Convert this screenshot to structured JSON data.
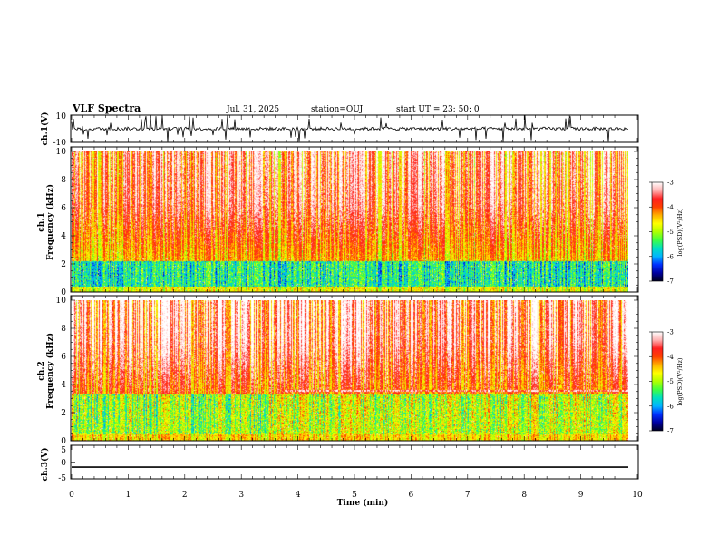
{
  "header": {
    "title": "VLF Spectra",
    "date": "Jul. 31, 2025",
    "station": "station=OUJ",
    "start": "start UT =  23: 50: 0"
  },
  "chart_data": [
    {
      "type": "line",
      "name": "ch1-waveform",
      "ylabel": "ch.1(V)",
      "ylim": [
        -10,
        10
      ],
      "yticklabels": [
        "10",
        "-10"
      ],
      "baseline": 0,
      "color": "#000000"
    },
    {
      "type": "heatmap",
      "name": "ch1-spectrogram",
      "ylabel_top": "ch.1",
      "ylabel": "Frequency (kHz)",
      "ylim": [
        0,
        10
      ],
      "yticks": [
        "0",
        "2",
        "4",
        "6",
        "8",
        "10"
      ],
      "colorbar": {
        "label": "log(PSD)(V²/Hz)",
        "range": [
          -7,
          -3
        ],
        "ticks": [
          "-3",
          "-4",
          "-5",
          "-6",
          "-7"
        ]
      }
    },
    {
      "type": "heatmap",
      "name": "ch2-spectrogram",
      "ylabel_top": "ch.2",
      "ylabel": "Frequency (kHz)",
      "ylim": [
        0,
        10
      ],
      "yticks": [
        "0",
        "2",
        "4",
        "6",
        "8",
        "10"
      ],
      "colorbar": {
        "label": "log(PSD)(V²/Hz)",
        "range": [
          -7,
          -3
        ],
        "ticks": [
          "-3",
          "-4",
          "-5",
          "-6",
          "-7"
        ]
      }
    },
    {
      "type": "line",
      "name": "ch3-waveform",
      "ylabel": "ch.3(V)",
      "ylim": [
        -5,
        5
      ],
      "yticklabels": [
        "5",
        "0",
        "-5"
      ],
      "baseline": -1.5,
      "color": "#000000"
    }
  ],
  "xaxis": {
    "label": "Time (min)",
    "range": [
      0,
      10
    ],
    "ticks": [
      "0",
      "1",
      "2",
      "3",
      "4",
      "5",
      "6",
      "7",
      "8",
      "9",
      "10"
    ]
  },
  "colormap": [
    "#000020",
    "#0000a0",
    "#0030ff",
    "#00b4ff",
    "#00e0c0",
    "#40ff40",
    "#b0ff00",
    "#ffff00",
    "#ffb000",
    "#ff4000",
    "#ff2020",
    "#ffb0b0",
    "#ffffff"
  ]
}
